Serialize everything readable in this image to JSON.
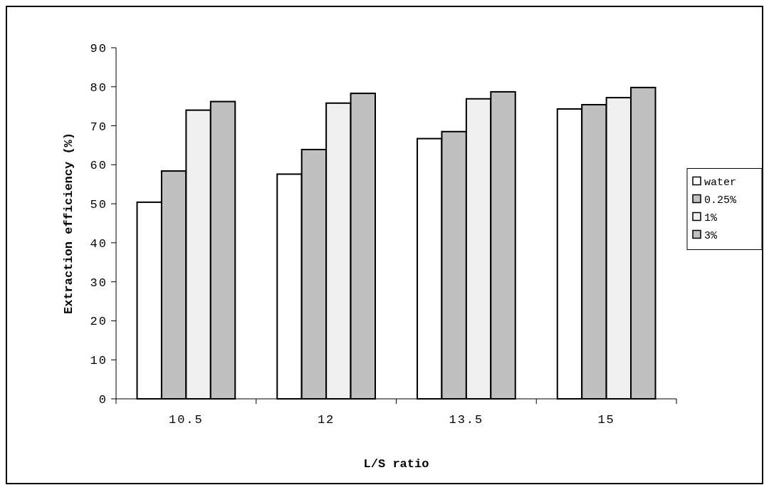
{
  "chart_data": {
    "type": "bar",
    "xlabel": "L/S ratio",
    "ylabel": "Extraction efficiency (%)",
    "categories": [
      "10.5",
      "12",
      "13.5",
      "15"
    ],
    "series": [
      {
        "name": "water",
        "color": "#ffffff",
        "values": [
          50.4,
          57.6,
          66.7,
          74.3
        ]
      },
      {
        "name": "0.25%",
        "color": "#c0c0c0",
        "values": [
          58.4,
          63.9,
          68.5,
          75.4
        ]
      },
      {
        "name": "1%",
        "color": "#f0f0f0",
        "values": [
          74.0,
          75.8,
          76.9,
          77.2
        ]
      },
      {
        "name": "3%",
        "color": "#c0c0c0",
        "values": [
          76.2,
          78.3,
          78.7,
          79.8
        ]
      }
    ],
    "ylim": [
      0,
      90
    ],
    "yticks": [
      0,
      10,
      20,
      30,
      40,
      50,
      60,
      70,
      80,
      90
    ],
    "grid": false,
    "legend": "right"
  }
}
